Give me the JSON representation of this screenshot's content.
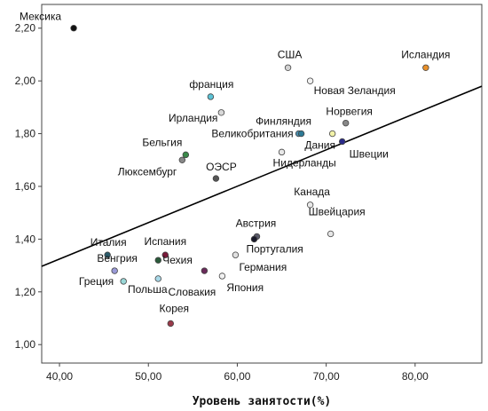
{
  "chart_data": {
    "type": "scatter",
    "xlabel": "Уровень занятости(%)",
    "ylabel": "",
    "xlim": [
      38,
      87.5
    ],
    "ylim": [
      0.93,
      2.29
    ],
    "x_ticks": [
      {
        "value": 40,
        "label": "40,00"
      },
      {
        "value": 50,
        "label": "50,00"
      },
      {
        "value": 60,
        "label": "60,00"
      },
      {
        "value": 70,
        "label": "70,00"
      },
      {
        "value": 80,
        "label": "80,00"
      }
    ],
    "y_ticks": [
      {
        "value": 1.0,
        "label": "1,00"
      },
      {
        "value": 1.2,
        "label": "1,20"
      },
      {
        "value": 1.4,
        "label": "1,40"
      },
      {
        "value": 1.6,
        "label": "1,60"
      },
      {
        "value": 1.8,
        "label": "1,80"
      },
      {
        "value": 2.0,
        "label": "2,00"
      },
      {
        "value": 2.2,
        "label": "2,20"
      }
    ],
    "grid": false,
    "trend_line": {
      "x": [
        38,
        87.5
      ],
      "y": [
        1.297,
        1.98
      ]
    },
    "points": [
      {
        "label": "Мексика",
        "x": 41.6,
        "y": 2.2,
        "color": "#111111",
        "anchor": "e",
        "dx": -14,
        "dy": -9
      },
      {
        "label": "Исландия",
        "x": 81.2,
        "y": 2.05,
        "color": "#e8902a",
        "anchor": "m",
        "dx": 0,
        "dy": -11
      },
      {
        "label": "США",
        "x": 65.7,
        "y": 2.05,
        "color": "#d2d2d2",
        "anchor": "m",
        "dx": 2,
        "dy": -11
      },
      {
        "label": "Новая Зеландия",
        "x": 68.2,
        "y": 2.0,
        "color": "#f2f2f2",
        "anchor": "s",
        "dx": 4,
        "dy": 15
      },
      {
        "label": "франция",
        "x": 57.0,
        "y": 1.94,
        "color": "#5cc3d6",
        "anchor": "m",
        "dx": 1,
        "dy": -10
      },
      {
        "label": "Ирландия",
        "x": 58.2,
        "y": 1.88,
        "color": "#d8d8d8",
        "anchor": "e",
        "dx": -4,
        "dy": 10
      },
      {
        "label": "Норвегия",
        "x": 72.2,
        "y": 1.84,
        "color": "#888888",
        "anchor": "m",
        "dx": 4,
        "dy": -9
      },
      {
        "label": "Финляндия",
        "x": 66.9,
        "y": 1.8,
        "color": "#4d8faf",
        "anchor": "m",
        "dx": -17,
        "dy": -10
      },
      {
        "label": "Великобритания",
        "x": 67.2,
        "y": 1.8,
        "color": "#2e7a96",
        "anchor": "e",
        "dx": -9,
        "dy": 4
      },
      {
        "label": "Дания",
        "x": 70.7,
        "y": 1.8,
        "color": "#f2f2a8",
        "anchor": "m",
        "dx": -14,
        "dy": 17
      },
      {
        "label": "Швеции",
        "x": 71.8,
        "y": 1.77,
        "color": "#2a2a8a",
        "anchor": "s",
        "dx": 8,
        "dy": 18
      },
      {
        "label": "Нидерланды",
        "x": 65.0,
        "y": 1.73,
        "color": "#e8e8e8",
        "anchor": "s",
        "dx": -10,
        "dy": 16
      },
      {
        "label": "Бельгия",
        "x": 54.2,
        "y": 1.72,
        "color": "#3a8a4a",
        "anchor": "e",
        "dx": -4,
        "dy": -10
      },
      {
        "label": "Люксембург",
        "x": 53.8,
        "y": 1.7,
        "color": "#888888",
        "anchor": "e",
        "dx": -6,
        "dy": 17
      },
      {
        "label": "ОЭСР",
        "x": 57.6,
        "y": 1.63,
        "color": "#555555",
        "anchor": "m",
        "dx": 6,
        "dy": -9
      },
      {
        "label": "Канада",
        "x": 68.2,
        "y": 1.53,
        "color": "#e8e8e8",
        "anchor": "m",
        "dx": 2,
        "dy": -11
      },
      {
        "label": "Австрия",
        "x": 62.2,
        "y": 1.41,
        "color": "#5a5a6a",
        "anchor": "m",
        "dx": -1,
        "dy": -11
      },
      {
        "label": "Швейцария",
        "x": 70.5,
        "y": 1.42,
        "color": "#e6e6e6",
        "anchor": "m",
        "dx": 7,
        "dy": -21
      },
      {
        "label": "Португалия",
        "x": 61.9,
        "y": 1.4,
        "color": "#1a1a2a",
        "anchor": "s",
        "dx": -9,
        "dy": 15
      },
      {
        "label": "Италия",
        "x": 45.4,
        "y": 1.34,
        "color": "#2a5a6a",
        "anchor": "m",
        "dx": 1,
        "dy": -10
      },
      {
        "label": "Испания",
        "x": 51.9,
        "y": 1.34,
        "color": "#7a1a3a",
        "anchor": "m",
        "dx": 0,
        "dy": -11
      },
      {
        "label": "Венгрия",
        "x": 46.2,
        "y": 1.28,
        "color": "#9a9ad8",
        "anchor": "m",
        "dx": 3,
        "dy": -10
      },
      {
        "label": "Чехия",
        "x": 51.1,
        "y": 1.32,
        "color": "#2a5a3a",
        "anchor": "s",
        "dx": 5,
        "dy": 4
      },
      {
        "label": "Германия",
        "x": 59.8,
        "y": 1.34,
        "color": "#e0e0e0",
        "anchor": "s",
        "dx": 4,
        "dy": 18
      },
      {
        "label": "Греция",
        "x": 47.2,
        "y": 1.24,
        "color": "#9ad8d8",
        "anchor": "e",
        "dx": -11,
        "dy": 4
      },
      {
        "label": "Польша",
        "x": 51.1,
        "y": 1.25,
        "color": "#a8d8e8",
        "anchor": "m",
        "dx": -12,
        "dy": 16
      },
      {
        "label": "Словакия",
        "x": 56.3,
        "y": 1.28,
        "color": "#6a2a5a",
        "anchor": "m",
        "dx": -14,
        "dy": 28
      },
      {
        "label": "Япония",
        "x": 58.3,
        "y": 1.26,
        "color": "#f2f2f2",
        "anchor": "s",
        "dx": 5,
        "dy": 17
      },
      {
        "label": "Корея",
        "x": 52.5,
        "y": 1.08,
        "color": "#9a3a4a",
        "anchor": "m",
        "dx": 4,
        "dy": -13
      }
    ]
  }
}
